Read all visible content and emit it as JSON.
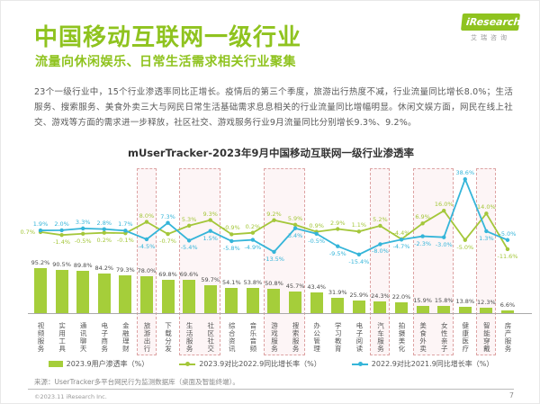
{
  "header": {
    "title": "中国移动互联网一级行业",
    "subtitle": "流量向休闲娱乐、日常生活需求相关行业聚集",
    "logo_text": "iResearch",
    "logo_sub": "艾瑞咨询"
  },
  "body_text": "23个一级行业中，15个行业渗透率同比正增长。疫情后的第三个季度，旅游出行热度不减，行业流量同比增长8.0%；生活服务、搜索服务、美食外卖三大与网民日常生活基础需求息息相关的行业流量同比增幅明显。休闲文娱方面，网民在线上社交、游戏等方面的需求进一步释放，社区社交、游戏服务行业9月流量同比分别增长9.3%、9.2%。",
  "chart_data": {
    "type": "bar",
    "title": "mUserTracker-2023年9月中国移动互联网一级行业渗透率",
    "categories": [
      "视频服务",
      "实用工具",
      "通讯聊天",
      "电子商务",
      "金融理财",
      "旅游出行",
      "下载分发",
      "生活服务",
      "社区社交",
      "综合资讯",
      "音乐音频",
      "游戏服务",
      "搜索服务",
      "办公管理",
      "学习教育",
      "电子阅读",
      "汽车服务",
      "拍摄美化",
      "美食外卖",
      "女性亲子",
      "健康医疗",
      "智能穿戴",
      "房产服务"
    ],
    "series": [
      {
        "name": "2023.9用户渗透率（%）",
        "type": "bar",
        "color": "#a5ce3a",
        "values": [
          95.2,
          90.5,
          89.8,
          84.2,
          79.3,
          78.0,
          69.8,
          69.6,
          59.7,
          54.1,
          53.8,
          50.8,
          45.7,
          43.4,
          31.9,
          25.9,
          24.3,
          22.0,
          15.9,
          15.8,
          13.8,
          12.3,
          6.6
        ]
      },
      {
        "name": "2023.9对比2022.9同比增长率（%）",
        "type": "line",
        "color": "#a4c73a",
        "values": [
          0.7,
          -1.4,
          -0.5,
          0.2,
          -0.1,
          8.0,
          -0.7,
          5.3,
          9.3,
          -0.9,
          0.2,
          9.2,
          5.9,
          0.9,
          2.9,
          1.1,
          5.2,
          -4.4,
          6.9,
          16.0,
          -5.0,
          14.0,
          -11.6
        ]
      },
      {
        "name": "2022.9对比2021.9同比增长率（%）",
        "type": "line",
        "color": "#35b5d9",
        "values": [
          1.9,
          2.0,
          3.3,
          2.8,
          1.7,
          -4.5,
          7.3,
          -5.4,
          1.5,
          -5.8,
          -4.9,
          -13.5,
          3.4,
          -0.5,
          -9.5,
          -15.4,
          -8.0,
          -4.7,
          -2.3,
          -3.0,
          38.6,
          1.3,
          -5.0
        ]
      }
    ],
    "highlighted_category_spans": [
      [
        5,
        5
      ],
      [
        7,
        8
      ],
      [
        11,
        12
      ],
      [
        16,
        16
      ],
      [
        18,
        19
      ],
      [
        21,
        21
      ]
    ],
    "legend_position": "bottom",
    "grid": false
  },
  "colors": {
    "brand_green": "#8fc31f",
    "bar_green": "#a5ce3a",
    "line_green": "#a4c73a",
    "line_blue": "#35b5d9",
    "highlight_border": "#dda3a3"
  },
  "source": "来源：UserTracker多平台网民行为监测数据库（桌面及智能终端）。",
  "footer": {
    "copyright": "©2023.11 iResearch Inc.",
    "page": "7"
  }
}
